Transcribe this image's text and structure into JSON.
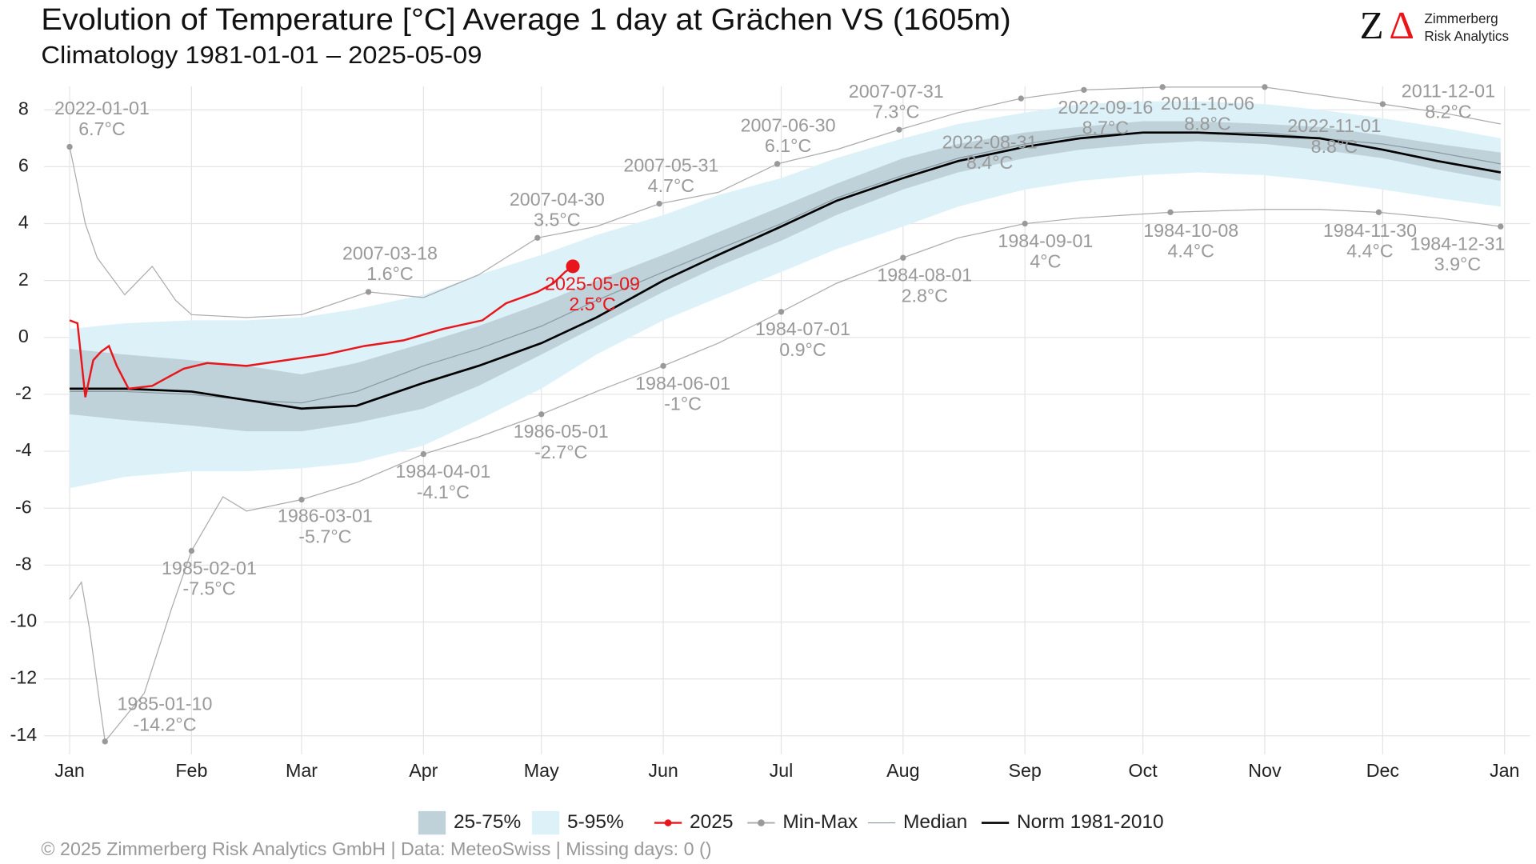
{
  "chart_data": {
    "type": "line",
    "title": "Evolution of Temperature [°C] Average 1 day at Grächen  VS (1605m)",
    "subtitle": "Climatology 1981-01-01 – 2025-05-09",
    "logo": {
      "z": "Z",
      "delta": "Δ",
      "line1": "Zimmerberg",
      "line2": "Risk Analytics"
    },
    "footer": "©  2025 Zimmerberg Risk Analytics GmbH | Data: MeteoSwiss | Missing days: 0 ()",
    "xlim": [
      -5.5,
      372.5
    ],
    "xticks": [
      {
        "value": 1,
        "label": "Jan"
      },
      {
        "value": 32,
        "label": "Feb"
      },
      {
        "value": 60,
        "label": "Mar"
      },
      {
        "value": 91,
        "label": "Apr"
      },
      {
        "value": 121,
        "label": "May"
      },
      {
        "value": 152,
        "label": "Jun"
      },
      {
        "value": 182,
        "label": "Jul"
      },
      {
        "value": 213,
        "label": "Aug"
      },
      {
        "value": 244,
        "label": "Sep"
      },
      {
        "value": 274,
        "label": "Oct"
      },
      {
        "value": 305,
        "label": "Nov"
      },
      {
        "value": 335,
        "label": "Dec"
      },
      {
        "value": 366,
        "label": "Jan"
      }
    ],
    "ylim": [
      -14.65,
      8.83
    ],
    "yticks": [
      -14,
      -12,
      -10,
      -8,
      -6,
      -4,
      -2,
      0,
      2,
      4,
      6,
      8
    ],
    "grid": true,
    "legend": "bottom",
    "series": [
      {
        "name": "25-75%",
        "type": "band",
        "color": "#bfd1d9",
        "x": [
          1,
          15,
          32,
          46,
          60,
          74,
          91,
          105,
          121,
          135,
          152,
          166,
          182,
          196,
          213,
          227,
          244,
          258,
          274,
          288,
          305,
          319,
          335,
          349,
          365
        ],
        "low": [
          -2.7,
          -2.9,
          -3.1,
          -3.3,
          -3.3,
          -3.0,
          -2.5,
          -1.7,
          -0.6,
          0.4,
          1.6,
          2.5,
          3.4,
          4.3,
          5.2,
          5.8,
          6.3,
          6.6,
          6.8,
          6.9,
          6.8,
          6.6,
          6.3,
          5.9,
          5.5
        ],
        "high": [
          -0.4,
          -0.6,
          -0.8,
          -1.0,
          -1.3,
          -0.9,
          -0.2,
          0.4,
          1.2,
          2.0,
          2.9,
          3.7,
          4.6,
          5.4,
          6.3,
          6.8,
          7.2,
          7.4,
          7.6,
          7.6,
          7.5,
          7.4,
          7.1,
          6.8,
          6.5
        ]
      },
      {
        "name": "5-95%",
        "type": "band",
        "color": "#ddf1f9",
        "x": [
          1,
          15,
          32,
          46,
          60,
          74,
          91,
          105,
          121,
          135,
          152,
          166,
          182,
          196,
          213,
          227,
          244,
          258,
          274,
          288,
          305,
          319,
          335,
          349,
          365
        ],
        "low": [
          -5.3,
          -4.9,
          -4.7,
          -4.7,
          -4.6,
          -4.4,
          -3.8,
          -2.9,
          -1.8,
          -0.6,
          0.6,
          1.4,
          2.3,
          3.1,
          3.9,
          4.6,
          5.2,
          5.5,
          5.7,
          5.8,
          5.7,
          5.5,
          5.2,
          4.9,
          4.6
        ],
        "high": [
          0.3,
          0.5,
          0.6,
          0.6,
          0.7,
          1.0,
          1.5,
          2.2,
          2.9,
          3.6,
          4.3,
          5.0,
          5.6,
          6.3,
          7.0,
          7.5,
          7.9,
          8.2,
          8.3,
          8.3,
          8.2,
          8.0,
          7.7,
          7.4,
          7.0
        ]
      },
      {
        "name": "2025",
        "type": "line",
        "color": "#e8161b",
        "width": 2,
        "x": [
          1,
          3,
          5,
          7,
          9,
          11,
          13,
          16,
          22,
          26,
          30,
          36,
          46,
          56,
          66,
          76,
          86,
          96,
          106,
          112,
          120,
          124,
          127,
          129
        ],
        "values": [
          0.6,
          0.5,
          -2.1,
          -0.8,
          -0.5,
          -0.3,
          -1.0,
          -1.8,
          -1.7,
          -1.4,
          -1.1,
          -0.9,
          -1.0,
          -0.8,
          -0.6,
          -0.3,
          -0.1,
          0.3,
          0.6,
          1.2,
          1.6,
          1.9,
          2.3,
          2.5
        ]
      },
      {
        "name": "Min-Max",
        "type": "range",
        "color": "#aaaaaa",
        "max": {
          "x": [
            1,
            5,
            8,
            15,
            22,
            28,
            32,
            46,
            60,
            77,
            91,
            105,
            120,
            135,
            151,
            166,
            181,
            196,
            212,
            227,
            243,
            259,
            279,
            305,
            320,
            335,
            350,
            365
          ],
          "values": [
            6.7,
            4.0,
            2.8,
            1.5,
            2.5,
            1.3,
            0.8,
            0.7,
            0.8,
            1.6,
            1.4,
            2.2,
            3.5,
            3.9,
            4.7,
            5.1,
            6.1,
            6.6,
            7.3,
            7.9,
            8.4,
            8.7,
            8.8,
            8.8,
            8.5,
            8.2,
            7.9,
            7.5
          ]
        },
        "min": {
          "x": [
            1,
            4,
            6,
            10,
            20,
            27,
            32,
            40,
            46,
            60,
            74,
            91,
            105,
            121,
            135,
            152,
            166,
            182,
            196,
            213,
            227,
            244,
            258,
            281,
            305,
            319,
            334,
            349,
            365
          ],
          "values": [
            -9.2,
            -8.6,
            -10.2,
            -14.2,
            -12.5,
            -9.5,
            -7.5,
            -5.6,
            -6.1,
            -5.7,
            -5.1,
            -4.1,
            -3.5,
            -2.7,
            -1.9,
            -1.0,
            -0.2,
            0.9,
            1.9,
            2.8,
            3.5,
            4.0,
            4.2,
            4.4,
            4.5,
            4.5,
            4.4,
            4.2,
            3.9
          ]
        }
      },
      {
        "name": "Median",
        "type": "line",
        "color": "#8a9aa2",
        "width": 1,
        "x": [
          1,
          15,
          32,
          46,
          60,
          74,
          91,
          105,
          121,
          135,
          152,
          166,
          182,
          196,
          213,
          227,
          244,
          258,
          274,
          288,
          305,
          319,
          335,
          349,
          365
        ],
        "values": [
          -1.9,
          -1.9,
          -2.0,
          -2.2,
          -2.3,
          -1.9,
          -1.0,
          -0.4,
          0.4,
          1.3,
          2.3,
          3.1,
          4.0,
          4.9,
          5.7,
          6.3,
          6.8,
          7.1,
          7.2,
          7.2,
          7.2,
          7.0,
          6.8,
          6.5,
          6.1
        ]
      },
      {
        "name": "Norm 1981-2010",
        "type": "line",
        "color": "#000000",
        "width": 2.2,
        "x": [
          1,
          15,
          32,
          46,
          60,
          74,
          91,
          105,
          121,
          135,
          152,
          166,
          182,
          196,
          213,
          227,
          244,
          258,
          274,
          288,
          305,
          319,
          335,
          349,
          365
        ],
        "values": [
          -1.8,
          -1.8,
          -1.9,
          -2.2,
          -2.5,
          -2.4,
          -1.6,
          -1.0,
          -0.2,
          0.7,
          2.0,
          2.9,
          3.9,
          4.8,
          5.6,
          6.2,
          6.7,
          7.0,
          7.2,
          7.2,
          7.1,
          7.0,
          6.6,
          6.2,
          5.8
        ]
      }
    ],
    "annotations": [
      {
        "x": 1,
        "y": 6.7,
        "date": "2022-01-01",
        "label": "6.7°C",
        "color": "#999999"
      },
      {
        "x": 77,
        "y": 1.6,
        "date": "2007-03-18",
        "label": "1.6°C",
        "color": "#999999"
      },
      {
        "x": 120,
        "y": 3.5,
        "date": "2007-04-30",
        "label": "3.5°C",
        "color": "#999999"
      },
      {
        "x": 151,
        "y": 4.7,
        "date": "2007-05-31",
        "label": "4.7°C",
        "color": "#999999"
      },
      {
        "x": 181,
        "y": 6.1,
        "date": "2007-06-30",
        "label": "6.1°C",
        "color": "#999999"
      },
      {
        "x": 212,
        "y": 7.3,
        "date": "2007-07-31",
        "label": "7.3°C",
        "color": "#999999"
      },
      {
        "x": 243,
        "y": 8.4,
        "date": "2022-08-31",
        "label": "8.4°C",
        "color": "#999999"
      },
      {
        "x": 259,
        "y": 8.7,
        "date": "2022-09-16",
        "label": "8.7°C",
        "color": "#999999"
      },
      {
        "x": 279,
        "y": 8.8,
        "date": "2011-10-06",
        "label": "8.8°C",
        "color": "#999999"
      },
      {
        "x": 305,
        "y": 8.8,
        "date": "2022-11-01",
        "label": "8.8°C",
        "color": "#999999"
      },
      {
        "x": 335,
        "y": 8.2,
        "date": "2011-12-01",
        "label": "8.2°C",
        "color": "#999999"
      },
      {
        "x": 10,
        "y": -14.2,
        "date": "1985-01-10",
        "label": "-14.2°C",
        "color": "#999999"
      },
      {
        "x": 32,
        "y": -7.5,
        "date": "1985-02-01",
        "label": "-7.5°C",
        "color": "#999999"
      },
      {
        "x": 60,
        "y": -5.7,
        "date": "1986-03-01",
        "label": "-5.7°C",
        "color": "#999999"
      },
      {
        "x": 91,
        "y": -4.1,
        "date": "1984-04-01",
        "label": "-4.1°C",
        "color": "#999999"
      },
      {
        "x": 121,
        "y": -2.7,
        "date": "1986-05-01",
        "label": "-2.7°C",
        "color": "#999999"
      },
      {
        "x": 152,
        "y": -1,
        "date": "1984-06-01",
        "label": "-1°C",
        "color": "#999999"
      },
      {
        "x": 182,
        "y": 0.9,
        "date": "1984-07-01",
        "label": "0.9°C",
        "color": "#999999"
      },
      {
        "x": 213,
        "y": 2.8,
        "date": "1984-08-01",
        "label": "2.8°C",
        "color": "#999999"
      },
      {
        "x": 244,
        "y": 4,
        "date": "1984-09-01",
        "label": "4°C",
        "color": "#999999"
      },
      {
        "x": 281,
        "y": 4.4,
        "date": "1984-10-08",
        "label": "4.4°C",
        "color": "#999999"
      },
      {
        "x": 334,
        "y": 4.4,
        "date": "1984-11-30",
        "label": "4.4°C",
        "color": "#999999"
      },
      {
        "x": 365,
        "y": 3.9,
        "date": "1984-12-31",
        "label": "3.9°C",
        "color": "#999999"
      },
      {
        "x": 129,
        "y": 2.5,
        "date": "2025-05-09",
        "label": "2.5°C",
        "color": "#e8161b"
      }
    ]
  }
}
